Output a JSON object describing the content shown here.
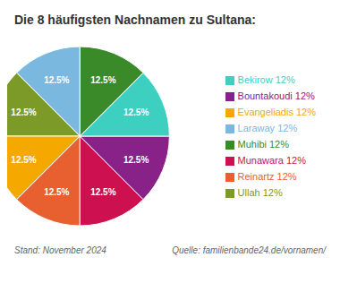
{
  "chart_data": {
    "type": "pie",
    "title": "Die 8 häufigsten Nachnamen zu Sultana:",
    "categories": [
      "Laraway 12%",
      "Ullah 12%",
      "Evangeliadis 12%",
      "Reinartz 12%",
      "Munawara 12%",
      "Bountakoudi 12%",
      "Bekirow 12%",
      "Muhibi 12%"
    ],
    "values": [
      12.5,
      12.5,
      12.5,
      12.5,
      12.5,
      12.5,
      12.5,
      12.5
    ],
    "value_labels": [
      "12.5%",
      "12.5%",
      "12.5%",
      "12.5%",
      "12.5%",
      "12.5%",
      "12.5%",
      "12.5%"
    ],
    "colors": [
      "#7AB8E0",
      "#7B9A28",
      "#F5A800",
      "#E86030",
      "#CC1050",
      "#882288",
      "#3DCFBF",
      "#3A8A2A"
    ],
    "data_labels": true,
    "legend": "right",
    "annotations": [
      "Stand: November 2024",
      "Quelle: familienbande24.de/vornamen/"
    ]
  }
}
